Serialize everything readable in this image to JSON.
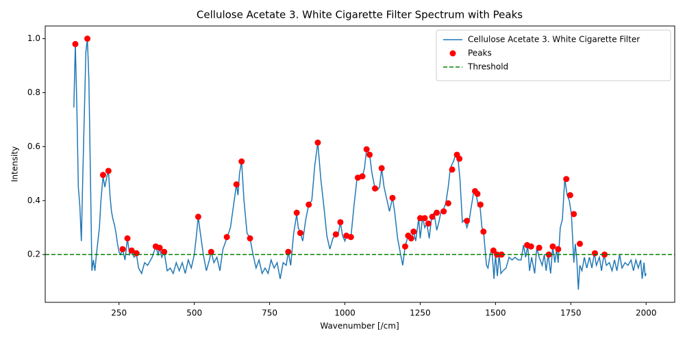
{
  "chart_data": {
    "type": "line",
    "title": "Cellulose Acetate 3. White Cigarette Filter Spectrum with Peaks",
    "xlabel": "Wavenumber [/cm]",
    "ylabel": "Intensity",
    "xlim": [
      5,
      2095
    ],
    "ylim": [
      0.023,
      1.047
    ],
    "xticks": [
      250,
      500,
      750,
      1000,
      1250,
      1500,
      1750,
      2000
    ],
    "yticks": [
      0.2,
      0.4,
      0.6,
      0.8,
      {
        "value": 1,
        "label": "1.0"
      }
    ],
    "legend": "upper right",
    "series": [
      {
        "name": "Cellulose Acetate 3. White Cigarette Filter",
        "color": "#1f77b4",
        "style": "line",
        "x": [
          100,
          105,
          110,
          115,
          120,
          125,
          130,
          140,
          145,
          150,
          155,
          160,
          165,
          170,
          175,
          180,
          185,
          190,
          197,
          203,
          210,
          215,
          220,
          225,
          230,
          235,
          240,
          245,
          250,
          255,
          262,
          270,
          278,
          285,
          292,
          300,
          308,
          315,
          325,
          335,
          345,
          360,
          372,
          380,
          385,
          392,
          400,
          410,
          420,
          430,
          440,
          450,
          460,
          470,
          480,
          490,
          500,
          507,
          513,
          520,
          530,
          540,
          550,
          556,
          565,
          575,
          585,
          595,
          608,
          620,
          630,
          640,
          645,
          650,
          657,
          665,
          675,
          685,
          695,
          705,
          715,
          725,
          735,
          745,
          755,
          765,
          775,
          785,
          795,
          805,
          812,
          820,
          830,
          840,
          845,
          852,
          860,
          870,
          880,
          890,
          900,
          910,
          920,
          930,
          940,
          950,
          960,
          970,
          977,
          985,
          992,
          1000,
          1005,
          1012,
          1020,
          1030,
          1040,
          1050,
          1058,
          1065,
          1072,
          1082,
          1090,
          1100,
          1108,
          1115,
          1122,
          1130,
          1140,
          1148,
          1158,
          1165,
          1175,
          1185,
          1192,
          1200,
          1210,
          1220,
          1228,
          1235,
          1245,
          1250,
          1258,
          1265,
          1272,
          1280,
          1288,
          1296,
          1305,
          1312,
          1320,
          1328,
          1335,
          1343,
          1350,
          1362,
          1368,
          1375,
          1382,
          1390,
          1398,
          1405,
          1413,
          1420,
          1428,
          1436,
          1442,
          1448,
          1455,
          1460,
          1470,
          1475,
          1482,
          1488,
          1495,
          1500,
          1506,
          1512,
          1518,
          1525,
          1535,
          1545,
          1555,
          1565,
          1575,
          1585,
          1593,
          1600,
          1607,
          1613,
          1620,
          1630,
          1637,
          1645,
          1655,
          1662,
          1668,
          1675,
          1683,
          1690,
          1697,
          1703,
          1708,
          1715,
          1722,
          1730,
          1738,
          1745,
          1752,
          1760,
          1765,
          1770,
          1775,
          1780,
          1787,
          1795,
          1803,
          1812,
          1820,
          1828,
          1835,
          1845,
          1852,
          1860,
          1868,
          1878,
          1887,
          1895,
          1903,
          1912,
          1920,
          1930,
          1940,
          1950,
          1958,
          1966,
          1974,
          1982,
          1987,
          1993,
          1997,
          2000
        ],
        "values": [
          0.745,
          0.98,
          0.75,
          0.45,
          0.38,
          0.25,
          0.5,
          0.95,
          1.0,
          0.85,
          0.5,
          0.14,
          0.18,
          0.14,
          0.2,
          0.25,
          0.3,
          0.4,
          0.49,
          0.45,
          0.49,
          0.51,
          0.42,
          0.36,
          0.33,
          0.31,
          0.28,
          0.24,
          0.21,
          0.2,
          0.22,
          0.18,
          0.26,
          0.2,
          0.215,
          0.19,
          0.2,
          0.15,
          0.13,
          0.17,
          0.16,
          0.19,
          0.23,
          0.2,
          0.225,
          0.19,
          0.21,
          0.14,
          0.15,
          0.13,
          0.17,
          0.14,
          0.17,
          0.13,
          0.18,
          0.15,
          0.2,
          0.27,
          0.34,
          0.28,
          0.2,
          0.14,
          0.18,
          0.21,
          0.17,
          0.19,
          0.14,
          0.22,
          0.26,
          0.3,
          0.38,
          0.46,
          0.42,
          0.5,
          0.545,
          0.4,
          0.28,
          0.26,
          0.2,
          0.15,
          0.18,
          0.13,
          0.15,
          0.13,
          0.18,
          0.15,
          0.17,
          0.11,
          0.17,
          0.16,
          0.21,
          0.16,
          0.28,
          0.35,
          0.3,
          0.28,
          0.25,
          0.33,
          0.385,
          0.4,
          0.53,
          0.615,
          0.48,
          0.38,
          0.27,
          0.22,
          0.26,
          0.275,
          0.27,
          0.32,
          0.27,
          0.25,
          0.27,
          0.26,
          0.265,
          0.38,
          0.48,
          0.49,
          0.49,
          0.52,
          0.59,
          0.57,
          0.5,
          0.445,
          0.44,
          0.45,
          0.52,
          0.45,
          0.4,
          0.36,
          0.41,
          0.36,
          0.26,
          0.2,
          0.16,
          0.23,
          0.27,
          0.26,
          0.285,
          0.25,
          0.335,
          0.26,
          0.34,
          0.3,
          0.315,
          0.26,
          0.34,
          0.355,
          0.29,
          0.32,
          0.365,
          0.37,
          0.39,
          0.45,
          0.52,
          0.55,
          0.575,
          0.56,
          0.48,
          0.32,
          0.33,
          0.3,
          0.33,
          0.38,
          0.435,
          0.425,
          0.38,
          0.385,
          0.3,
          0.29,
          0.16,
          0.15,
          0.2,
          0.22,
          0.11,
          0.2,
          0.12,
          0.2,
          0.13,
          0.14,
          0.15,
          0.19,
          0.18,
          0.19,
          0.18,
          0.18,
          0.235,
          0.19,
          0.235,
          0.14,
          0.19,
          0.13,
          0.225,
          0.19,
          0.16,
          0.2,
          0.14,
          0.2,
          0.13,
          0.23,
          0.17,
          0.22,
          0.17,
          0.3,
          0.33,
          0.48,
          0.42,
          0.4,
          0.35,
          0.17,
          0.24,
          0.18,
          0.07,
          0.16,
          0.14,
          0.19,
          0.15,
          0.19,
          0.15,
          0.205,
          0.16,
          0.19,
          0.14,
          0.2,
          0.16,
          0.17,
          0.14,
          0.18,
          0.14,
          0.2,
          0.15,
          0.17,
          0.16,
          0.18,
          0.14,
          0.18,
          0.15,
          0.18,
          0.11,
          0.17,
          0.12,
          0.13
        ]
      },
      {
        "name": "Peaks",
        "color": "#ff0000",
        "style": "points",
        "x": [
          105,
          145,
          197,
          215,
          262,
          278,
          292,
          308,
          372,
          385,
          400,
          513,
          556,
          608,
          640,
          657,
          685,
          812,
          840,
          852,
          880,
          910,
          970,
          985,
          1005,
          1020,
          1043,
          1058,
          1072,
          1082,
          1100,
          1122,
          1158,
          1200,
          1210,
          1220,
          1228,
          1250,
          1265,
          1277,
          1290,
          1305,
          1328,
          1343,
          1356,
          1372,
          1380,
          1405,
          1432,
          1440,
          1450,
          1460,
          1493,
          1505,
          1520,
          1605,
          1618,
          1645,
          1677,
          1690,
          1708,
          1735,
          1748,
          1760,
          1780,
          1830,
          1862
        ],
        "values": [
          0.98,
          1.0,
          0.495,
          0.51,
          0.22,
          0.26,
          0.215,
          0.205,
          0.23,
          0.225,
          0.21,
          0.34,
          0.21,
          0.265,
          0.46,
          0.545,
          0.26,
          0.21,
          0.355,
          0.28,
          0.385,
          0.615,
          0.275,
          0.32,
          0.27,
          0.265,
          0.485,
          0.49,
          0.59,
          0.57,
          0.445,
          0.52,
          0.41,
          0.23,
          0.27,
          0.26,
          0.285,
          0.335,
          0.335,
          0.315,
          0.34,
          0.355,
          0.36,
          0.39,
          0.515,
          0.57,
          0.555,
          0.325,
          0.435,
          0.425,
          0.385,
          0.285,
          0.215,
          0.2,
          0.2,
          0.235,
          0.23,
          0.225,
          0.2,
          0.23,
          0.22,
          0.48,
          0.42,
          0.35,
          0.24,
          0.205,
          0.2
        ]
      }
    ],
    "threshold": {
      "name": "Threshold",
      "color": "#008000",
      "value": 0.2,
      "dashed": true
    }
  }
}
